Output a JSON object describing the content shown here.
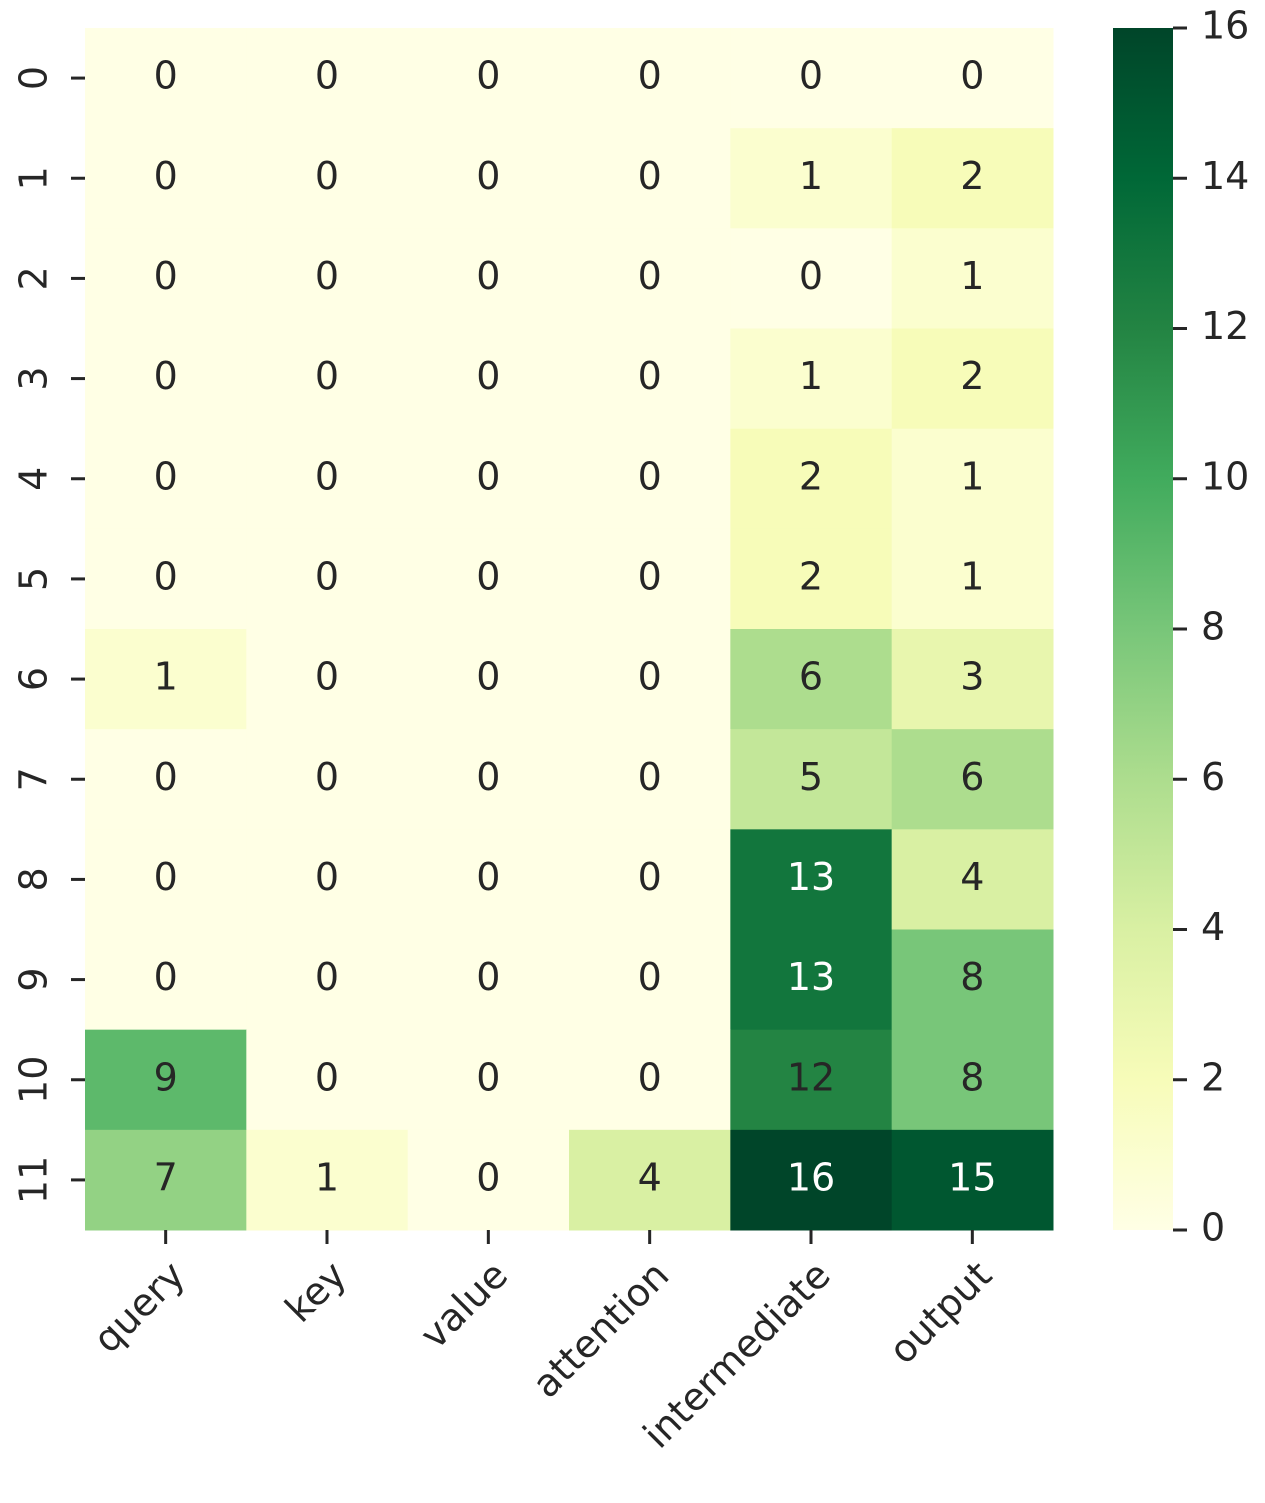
{
  "chart_data": {
    "type": "heatmap",
    "x_categories": [
      "query",
      "key",
      "value",
      "attention",
      "intermediate",
      "output"
    ],
    "y_categories": [
      "0",
      "1",
      "2",
      "3",
      "4",
      "5",
      "6",
      "7",
      "8",
      "9",
      "10",
      "11"
    ],
    "values": [
      [
        0,
        0,
        0,
        0,
        0,
        0
      ],
      [
        0,
        0,
        0,
        0,
        1,
        2
      ],
      [
        0,
        0,
        0,
        0,
        0,
        1
      ],
      [
        0,
        0,
        0,
        0,
        1,
        2
      ],
      [
        0,
        0,
        0,
        0,
        2,
        1
      ],
      [
        0,
        0,
        0,
        0,
        2,
        1
      ],
      [
        1,
        0,
        0,
        0,
        6,
        3
      ],
      [
        0,
        0,
        0,
        0,
        5,
        6
      ],
      [
        0,
        0,
        0,
        0,
        13,
        4
      ],
      [
        0,
        0,
        0,
        0,
        13,
        8
      ],
      [
        9,
        0,
        0,
        0,
        12,
        8
      ],
      [
        7,
        1,
        0,
        4,
        16,
        15
      ]
    ],
    "colormap": [
      "#ffffe5",
      "#f7fcb9",
      "#d9f0a3",
      "#addd8e",
      "#78c679",
      "#41ab5d",
      "#238443",
      "#006837",
      "#004529"
    ],
    "zlim": [
      0,
      16
    ],
    "zticks": [
      0,
      2,
      4,
      6,
      8,
      10,
      12,
      14,
      16
    ],
    "annotate": true
  }
}
